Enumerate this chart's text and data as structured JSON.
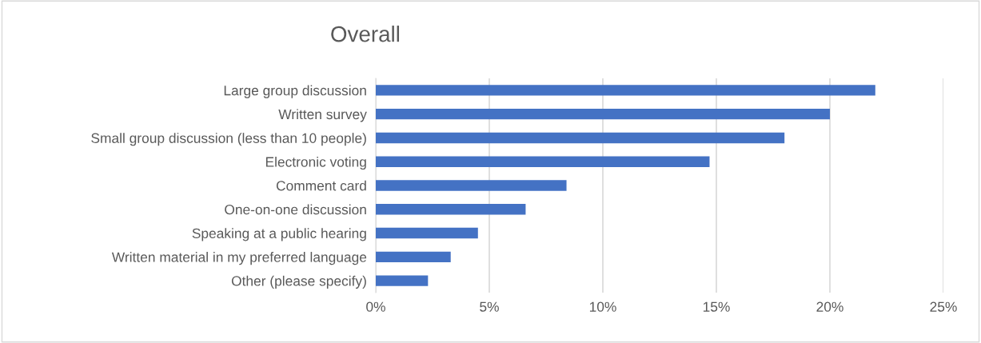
{
  "chart_data": {
    "type": "bar",
    "orientation": "horizontal",
    "title": "Overall",
    "categories": [
      "Large group discussion",
      "Written survey",
      "Small group discussion (less than 10 people)",
      "Electronic voting",
      "Comment card",
      "One-on-one discussion",
      "Speaking at a public hearing",
      "Written material in my preferred language",
      "Other (please specify)"
    ],
    "values": [
      22.0,
      20.0,
      18.0,
      14.7,
      8.4,
      6.6,
      4.5,
      3.3,
      2.3
    ],
    "color": "#4472c4",
    "xlim": [
      0,
      25
    ],
    "xticks": [
      {
        "value": 0,
        "label": "0%"
      },
      {
        "value": 5,
        "label": "5%"
      },
      {
        "value": 10,
        "label": "10%"
      },
      {
        "value": 15,
        "label": "15%"
      },
      {
        "value": 20,
        "label": "20%"
      },
      {
        "value": 25,
        "label": "25%"
      }
    ],
    "grid": "x",
    "legend": false
  }
}
